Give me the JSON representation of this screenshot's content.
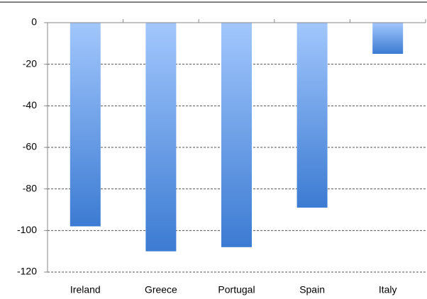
{
  "chart_data": {
    "type": "bar",
    "categories": [
      "Ireland",
      "Greece",
      "Portugal",
      "Spain",
      "Italy"
    ],
    "values": [
      -98,
      -110,
      -108,
      -89,
      -15
    ],
    "gradient": [
      "#a2c7fd",
      "#3c7bd2"
    ],
    "ylim": [
      -120,
      0
    ],
    "yticks": [
      0,
      -20,
      -40,
      -60,
      -80,
      -100,
      -120
    ],
    "grid": true
  }
}
